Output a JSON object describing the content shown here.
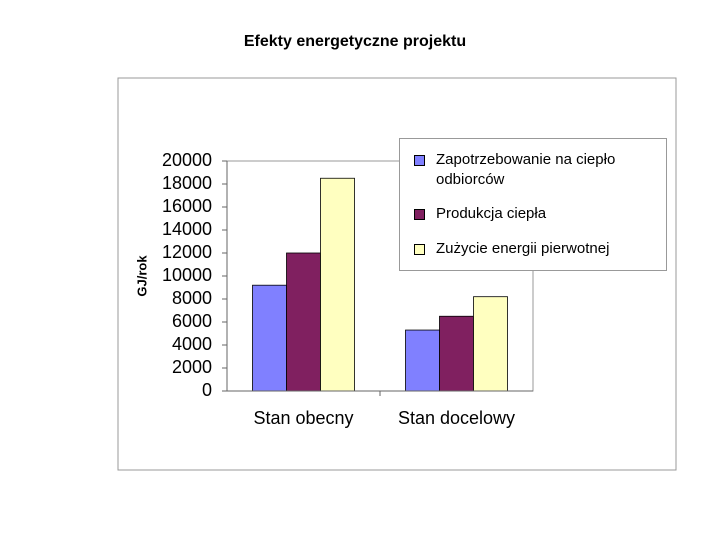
{
  "chart_data": {
    "type": "bar",
    "title": "Efekty energetyczne projektu",
    "y_label": "GJ/rok",
    "categories": [
      "Stan obecny",
      "Stan docelowy"
    ],
    "series": [
      {
        "name": "Zapotrzebowanie na ciepło odbiorców",
        "color": "#8080ff",
        "values": [
          9200,
          5300
        ]
      },
      {
        "name": "Produkcja ciepła",
        "color": "#802060",
        "values": [
          12000,
          6500
        ]
      },
      {
        "name": "Zużycie energii pierwotnej",
        "color": "#ffffc0",
        "values": [
          18500,
          8200
        ]
      }
    ],
    "ylim": [
      0,
      20000
    ],
    "yticks": [
      0,
      2000,
      4000,
      6000,
      8000,
      10000,
      12000,
      14000,
      16000,
      18000,
      20000
    ],
    "grid": false,
    "legend": "right"
  }
}
